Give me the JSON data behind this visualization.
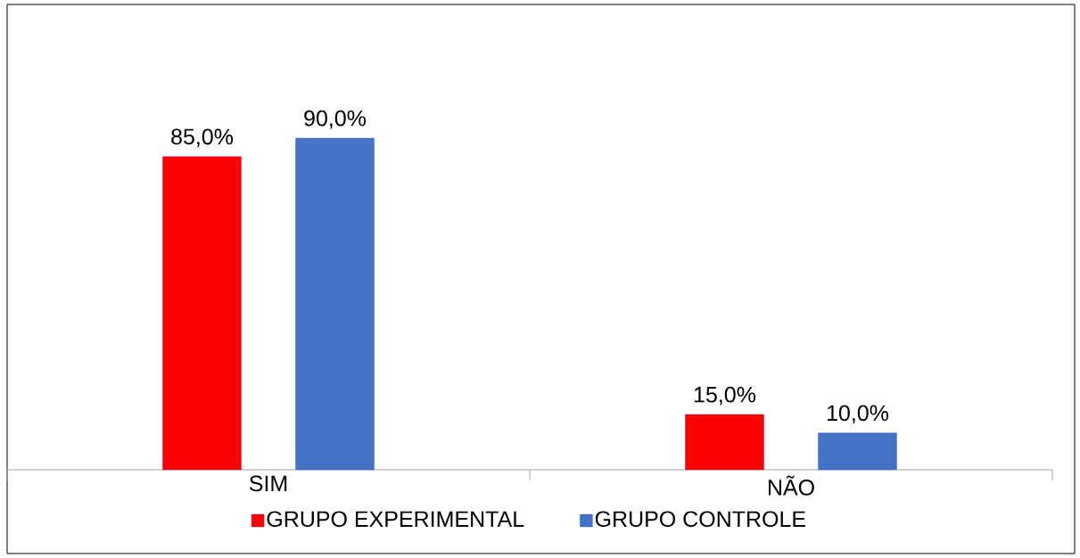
{
  "chart_data": {
    "type": "bar",
    "categories": [
      "SIM",
      "NÃO"
    ],
    "series": [
      {
        "name": "GRUPO EXPERIMENTAL",
        "color": "#ff0000",
        "values": [
          85,
          15
        ],
        "value_labels": [
          "85,0%",
          "15,0%"
        ]
      },
      {
        "name": "GRUPO CONTROLE",
        "color": "#4472c4",
        "values": [
          90,
          10
        ],
        "value_labels": [
          "90,0%",
          "10,0%"
        ]
      }
    ],
    "legend": "bottom"
  }
}
